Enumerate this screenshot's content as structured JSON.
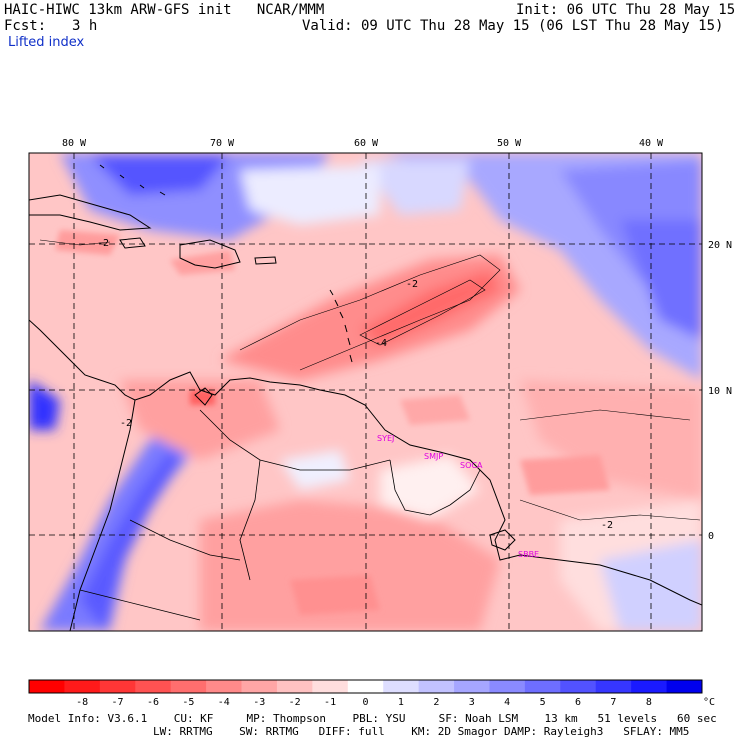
{
  "header": {
    "model_title": "HAIC-HIWC 13km ARW-GFS init   NCAR/MMM",
    "init_time": "Init: 06 UTC Thu 28 May 15",
    "forecast_label": "Fcst:",
    "forecast_hours": "3 h",
    "valid_time": "Valid: 09 UTC Thu 28 May 15 (06 LST Thu 28 May 15)",
    "field_name": "Lifted index"
  },
  "map": {
    "lon_labels": [
      "80 W",
      "70 W",
      "60 W",
      "50 W",
      "40 W"
    ],
    "lat_labels": [
      "20 N",
      "10 N",
      "0"
    ],
    "contour_labels": [
      "-2",
      "-2",
      "-4",
      "-2",
      "-2"
    ],
    "stations": [
      "SYEJ",
      "SMJP",
      "SOCA",
      "SBBE"
    ]
  },
  "colorbar": {
    "ticks": [
      "-8",
      "-7",
      "-6",
      "-5",
      "-4",
      "-3",
      "-2",
      "-1",
      "0",
      "1",
      "2",
      "3",
      "4",
      "5",
      "6",
      "7",
      "8"
    ],
    "unit": "°C",
    "colors": [
      "#ff1a1a",
      "#ff3636",
      "#ff5252",
      "#ff6e6e",
      "#ff8a8a",
      "#ffa6a6",
      "#ffc2c2",
      "#ffdede",
      "#ffffff",
      "#dedeff",
      "#c2c2ff",
      "#a6a6ff",
      "#8a8aff",
      "#6e6eff",
      "#5252ff",
      "#3636ff",
      "#1a1aff"
    ]
  },
  "footer": {
    "line1": "Model Info: V3.6.1    CU: KF     MP: Thompson    PBL: YSU     SF: Noah LSM    13 km   51 levels   60 sec",
    "line2": "LW: RRTMG    SW: RRTMG   DIFF: full    KM: 2D Smagor DAMP: Rayleigh3   SFLAY: MM5"
  }
}
